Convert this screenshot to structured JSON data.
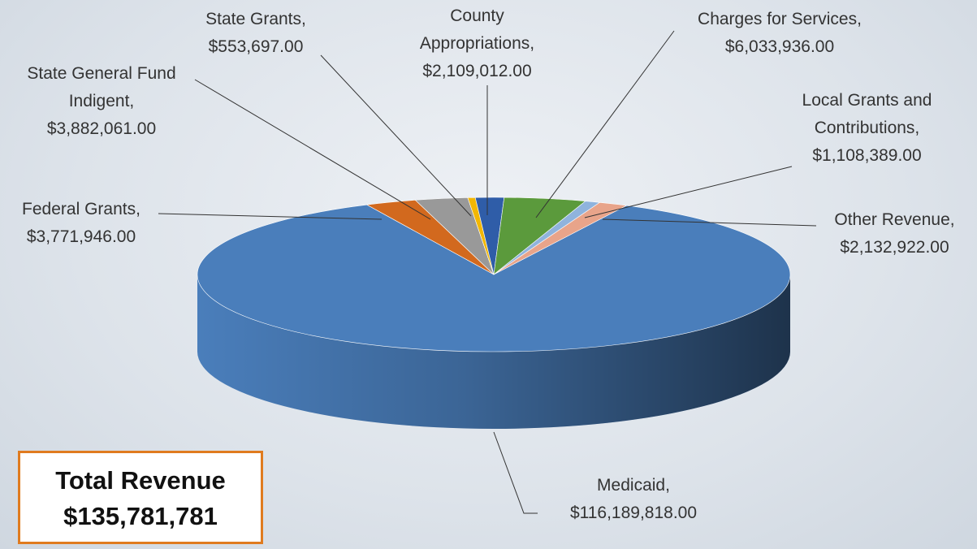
{
  "chart_data": {
    "type": "pie",
    "style": "3d",
    "categories": [
      "Medicaid,",
      "Federal Grants,",
      "State General Fund Indigent,",
      "State Grants,",
      "County Appropriations,",
      "Charges for Services,",
      "Local Grants and Contributions,",
      "Other Revenue,"
    ],
    "values": [
      116189818,
      3771946,
      3882061,
      553697,
      2109012,
      6033936,
      1108389,
      2132922
    ],
    "value_labels": [
      "$116,189,818.00",
      "$3,771,946.00",
      "$3,882,061.00",
      "$553,697.00",
      "$2,109,012.00",
      "$6,033,936.00",
      "$1,108,389.00",
      "$2,132,922.00"
    ],
    "colors": [
      "#4a7ebb",
      "#d2691e",
      "#999999",
      "#f2b705",
      "#2f5da8",
      "#5b9a3c",
      "#8fb3dd",
      "#e8a48a"
    ],
    "annotation": {
      "title": "Total Revenue",
      "total": "$135,781,781"
    }
  }
}
